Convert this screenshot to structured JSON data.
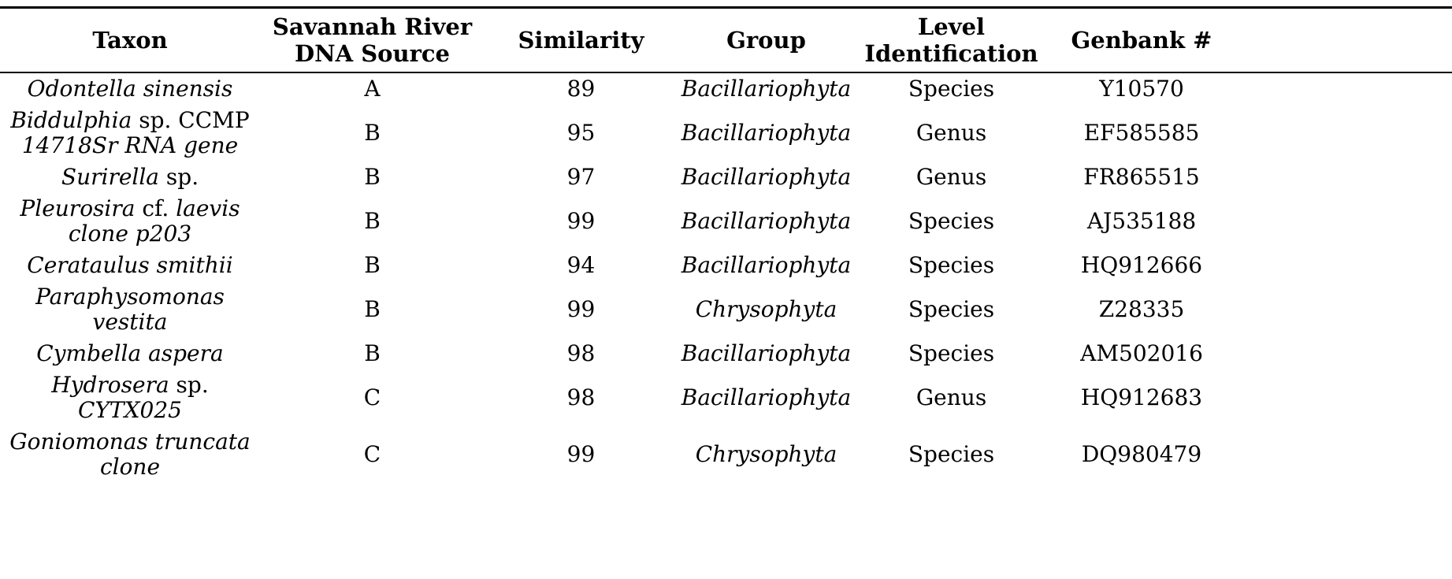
{
  "colors": {
    "background": "#ffffff",
    "text": "#000000",
    "rule": "#000000"
  },
  "table": {
    "headers": [
      {
        "id": "taxon",
        "lines": [
          "Taxon"
        ]
      },
      {
        "id": "source",
        "lines": [
          "Savannah River",
          "DNA Source"
        ]
      },
      {
        "id": "sim",
        "lines": [
          "Similarity"
        ]
      },
      {
        "id": "group",
        "lines": [
          "Group"
        ]
      },
      {
        "id": "level",
        "lines": [
          "Level",
          "Identification"
        ]
      },
      {
        "id": "genbank",
        "lines": [
          "Genbank #"
        ]
      }
    ],
    "rows": [
      {
        "taxon_lines": [
          [
            {
              "t": "Odontella sinensis",
              "i": true
            }
          ]
        ],
        "dna_source": "A",
        "similarity": "89",
        "group": "Bacillariophyta",
        "level_identification": "Species",
        "genbank": "Y10570"
      },
      {
        "taxon_lines": [
          [
            {
              "t": "Biddulphia",
              "i": true
            },
            {
              "t": " sp. CCMP",
              "i": false
            }
          ],
          [
            {
              "t": "14718Sr RNA gene",
              "i": true
            }
          ]
        ],
        "dna_source": "B",
        "similarity": "95",
        "group": "Bacillariophyta",
        "level_identification": "Genus",
        "genbank": "EF585585"
      },
      {
        "taxon_lines": [
          [
            {
              "t": "Surirella",
              "i": true
            },
            {
              "t": " sp.",
              "i": false
            }
          ]
        ],
        "dna_source": "B",
        "similarity": "97",
        "group": "Bacillariophyta",
        "level_identification": "Genus",
        "genbank": "FR865515"
      },
      {
        "taxon_lines": [
          [
            {
              "t": "Pleurosira",
              "i": true
            },
            {
              "t": " cf. ",
              "i": false
            },
            {
              "t": "laevis",
              "i": true
            }
          ],
          [
            {
              "t": "clone p203",
              "i": true
            }
          ]
        ],
        "dna_source": "B",
        "similarity": "99",
        "group": "Bacillariophyta",
        "level_identification": "Species",
        "genbank": "AJ535188"
      },
      {
        "taxon_lines": [
          [
            {
              "t": "Cerataulus smithii",
              "i": true
            }
          ]
        ],
        "dna_source": "B",
        "similarity": "94",
        "group": "Bacillariophyta",
        "level_identification": "Species",
        "genbank": "HQ912666"
      },
      {
        "taxon_lines": [
          [
            {
              "t": "Paraphysomonas",
              "i": true
            }
          ],
          [
            {
              "t": "vestita",
              "i": true
            }
          ]
        ],
        "dna_source": "B",
        "similarity": "99",
        "group": "Chrysophyta",
        "level_identification": "Species",
        "genbank": "Z28335"
      },
      {
        "taxon_lines": [
          [
            {
              "t": "Cymbella aspera",
              "i": true
            }
          ]
        ],
        "dna_source": "B",
        "similarity": "98",
        "group": "Bacillariophyta",
        "level_identification": "Species",
        "genbank": "AM502016"
      },
      {
        "taxon_lines": [
          [
            {
              "t": "Hydrosera",
              "i": true
            },
            {
              "t": " sp.",
              "i": false
            }
          ],
          [
            {
              "t": "CYTX025",
              "i": true
            }
          ]
        ],
        "dna_source": "C",
        "similarity": "98",
        "group": "Bacillariophyta",
        "level_identification": "Genus",
        "genbank": "HQ912683"
      },
      {
        "taxon_lines": [
          [
            {
              "t": "Goniomonas truncata",
              "i": true
            }
          ],
          [
            {
              "t": "clone",
              "i": true
            }
          ]
        ],
        "dna_source": "C",
        "similarity": "99",
        "group": "Chrysophyta",
        "level_identification": "Species",
        "genbank": "DQ980479"
      }
    ]
  }
}
